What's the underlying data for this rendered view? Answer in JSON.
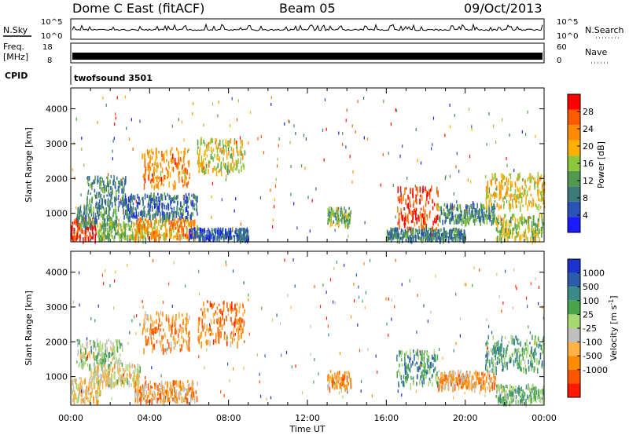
{
  "header": {
    "radar": "Dome C East (fitACF)",
    "beam": "Beam 05",
    "date": "09/Oct/2013"
  },
  "noise_panel": {
    "left_label": "N.Sky",
    "right_label": "N.Search",
    "left_ticks": [
      "10^5",
      "10^0"
    ],
    "right_ticks": [
      "10^5",
      "10^0"
    ]
  },
  "freq_panel": {
    "left_label_line1": "Freq.",
    "left_label_line2": "[MHz]",
    "right_label": "Nave",
    "left_ticks": [
      "18",
      "8"
    ],
    "right_ticks": [
      "60",
      "0"
    ]
  },
  "cpid_panel": {
    "label": "CPID",
    "value": "twofsound 3501"
  },
  "colors": {
    "power_scale": [
      "#1a1aff",
      "#2a52b8",
      "#3c7a7a",
      "#4f9a4f",
      "#8cc63a",
      "#ffb000",
      "#ff8c00",
      "#ff5a00",
      "#ff0000"
    ],
    "velocity_scale": [
      "#1a33cc",
      "#2a5ca8",
      "#3a8a8a",
      "#4aa54a",
      "#a8d870",
      "#bfbfbf",
      "#ffb347",
      "#ff8c00",
      "#ff5500",
      "#ff1a00"
    ]
  },
  "chart_data": [
    {
      "type": "heatmap",
      "panel": "power",
      "xlabel": "",
      "ylabel": "Slant Range [km]",
      "x_ticks": [
        "00:00",
        "04:00",
        "08:00",
        "12:00",
        "16:00",
        "20:00",
        "00:00"
      ],
      "y_ticks": [
        1000,
        2000,
        3000,
        4000
      ],
      "xlim": [
        0,
        24
      ],
      "ylim": [
        180,
        4600
      ],
      "colorbar": {
        "label": "Power [dB]",
        "ticks": [
          4,
          8,
          12,
          16,
          20,
          24,
          28
        ],
        "range": [
          0,
          32
        ]
      },
      "regions": [
        {
          "t": [
            0.0,
            1.3
          ],
          "r": [
            300,
            900
          ],
          "level": 0.92
        },
        {
          "t": [
            0.3,
            2.4
          ],
          "r": [
            700,
            1300
          ],
          "level": 0.35
        },
        {
          "t": [
            0.8,
            2.8
          ],
          "r": [
            1300,
            2100
          ],
          "level": 0.3
        },
        {
          "t": [
            1.3,
            3.8
          ],
          "r": [
            300,
            800
          ],
          "level": 0.45
        },
        {
          "t": [
            3.2,
            6.4
          ],
          "r": [
            300,
            900
          ],
          "level": 0.7
        },
        {
          "t": [
            2.6,
            6.4
          ],
          "r": [
            900,
            1600
          ],
          "level": 0.25
        },
        {
          "t": [
            3.6,
            6.0
          ],
          "r": [
            1800,
            2900
          ],
          "level": 0.72
        },
        {
          "t": [
            6.4,
            8.8
          ],
          "r": [
            2200,
            3200
          ],
          "level": 0.55
        },
        {
          "t": [
            6.0,
            9.0
          ],
          "r": [
            300,
            600
          ],
          "level": 0.18
        },
        {
          "t": [
            13.0,
            14.2
          ],
          "r": [
            700,
            1200
          ],
          "level": 0.45
        },
        {
          "t": [
            16.5,
            18.6
          ],
          "r": [
            600,
            1800
          ],
          "level": 0.88
        },
        {
          "t": [
            18.6,
            21.5
          ],
          "r": [
            800,
            1300
          ],
          "level": 0.35
        },
        {
          "t": [
            21.0,
            24.0
          ],
          "r": [
            1200,
            2200
          ],
          "level": 0.6
        },
        {
          "t": [
            21.5,
            24.0
          ],
          "r": [
            300,
            1000
          ],
          "level": 0.5
        },
        {
          "t": [
            16.0,
            20.0
          ],
          "r": [
            300,
            600
          ],
          "level": 0.3
        }
      ]
    },
    {
      "type": "heatmap",
      "panel": "velocity",
      "xlabel": "Time UT",
      "ylabel": "Slant Range [km]",
      "x_ticks": [
        "00:00",
        "04:00",
        "08:00",
        "12:00",
        "16:00",
        "20:00",
        "00:00"
      ],
      "y_ticks": [
        1000,
        2000,
        3000,
        4000
      ],
      "xlim": [
        0,
        24
      ],
      "ylim": [
        180,
        4600
      ],
      "colorbar": {
        "label": "Velocity [m s^-1]",
        "ticks": [
          "1000",
          "500",
          "100",
          "25",
          "-25",
          "-100",
          "-500",
          "-1000"
        ],
        "range": [
          -1200,
          1200
        ]
      },
      "regions": [
        {
          "t": [
            0.0,
            1.5
          ],
          "r": [
            300,
            1000
          ],
          "level": 0.62
        },
        {
          "t": [
            0.3,
            2.6
          ],
          "r": [
            1300,
            2100
          ],
          "level": 0.45
        },
        {
          "t": [
            1.0,
            3.5
          ],
          "r": [
            800,
            1400
          ],
          "level": 0.55
        },
        {
          "t": [
            3.2,
            6.4
          ],
          "r": [
            300,
            900
          ],
          "level": 0.7
        },
        {
          "t": [
            3.6,
            6.0
          ],
          "r": [
            1800,
            2900
          ],
          "level": 0.72
        },
        {
          "t": [
            6.4,
            8.8
          ],
          "r": [
            2000,
            3200
          ],
          "level": 0.75
        },
        {
          "t": [
            13.0,
            14.2
          ],
          "r": [
            700,
            1200
          ],
          "level": 0.72
        },
        {
          "t": [
            16.5,
            18.6
          ],
          "r": [
            800,
            1800
          ],
          "level": 0.3
        },
        {
          "t": [
            18.6,
            21.5
          ],
          "r": [
            700,
            1200
          ],
          "level": 0.68
        },
        {
          "t": [
            21.0,
            24.0
          ],
          "r": [
            1200,
            2200
          ],
          "level": 0.35
        },
        {
          "t": [
            21.5,
            24.0
          ],
          "r": [
            300,
            800
          ],
          "level": 0.42
        }
      ]
    }
  ]
}
